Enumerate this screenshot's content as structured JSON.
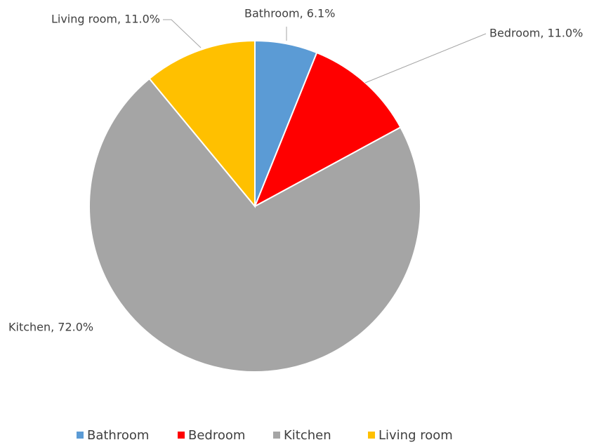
{
  "chart_data": {
    "type": "pie",
    "categories": [
      "Bathroom",
      "Bedroom",
      "Kitchen",
      "Living room"
    ],
    "values": [
      6.1,
      11.0,
      72.0,
      11.0
    ],
    "value_labels": [
      "Bathroom, 6.1%",
      "Bedroom, 11.0%",
      "Kitchen, 72.0%",
      "Living room, 11.0%"
    ],
    "colors": [
      "#5b9bd5",
      "#ff0000",
      "#a5a5a5",
      "#ffc000"
    ],
    "legend": "bottom"
  }
}
